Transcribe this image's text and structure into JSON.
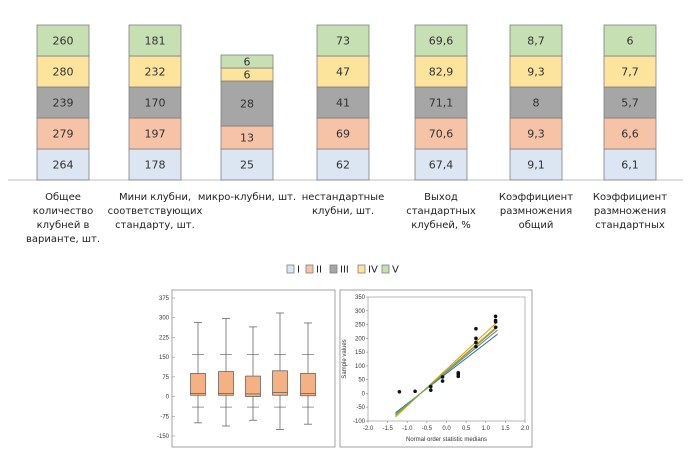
{
  "main_chart": {
    "type": "bar",
    "stacked": true,
    "categories": [
      [
        "Общее",
        "количество",
        "клубней в",
        "варианте, шт."
      ],
      [
        "Мини клубни,",
        "соответствующих",
        "стандарту, шт."
      ],
      [
        "микро-клубни, шт."
      ],
      [
        "нестандартные",
        "клубни, шт."
      ],
      [
        "Выход",
        "стандартных",
        "клубней, %"
      ],
      [
        "Коэффициент",
        "размножения",
        "общий"
      ],
      [
        "Коэффициент",
        "размножения",
        "стандартных"
      ]
    ],
    "series": [
      {
        "name": "I",
        "color": "#dce6f2",
        "values": [
          264,
          178,
          25,
          62,
          67.4,
          9.1,
          6.1
        ],
        "labels": [
          "264",
          "178",
          "25",
          "62",
          "67,4",
          "9,1",
          "6,1"
        ]
      },
      {
        "name": "II",
        "color": "#f7c3a7",
        "values": [
          279,
          197,
          13,
          69,
          70.6,
          9.3,
          6.6
        ],
        "labels": [
          "279",
          "197",
          "13",
          "69",
          "70,6",
          "9,3",
          "6,6"
        ]
      },
      {
        "name": "III",
        "color": "#a6a6a6",
        "values": [
          239,
          170,
          28,
          41,
          71.1,
          8,
          5.7
        ],
        "labels": [
          "239",
          "170",
          "28",
          "41",
          "71,1",
          "8",
          "5,7"
        ]
      },
      {
        "name": "IV",
        "color": "#fde49c",
        "values": [
          280,
          232,
          6,
          47,
          82.9,
          9.3,
          7.7
        ],
        "labels": [
          "280",
          "232",
          "6",
          "47",
          "82,9",
          "9,3",
          "7,7"
        ]
      },
      {
        "name": "V",
        "color": "#c6e0b4",
        "values": [
          260,
          181,
          6,
          73,
          69.6,
          8.7,
          6
        ],
        "labels": [
          "260",
          "181",
          "6",
          "73",
          "69,6",
          "8,7",
          "6"
        ]
      }
    ],
    "legend": "bottom-center"
  },
  "chart_data": [
    {
      "type": "box",
      "y_ticks": [
        "375",
        "300",
        "225",
        "150",
        "75",
        "0",
        "-75",
        "-150"
      ],
      "ylim": [
        -150,
        375
      ],
      "boxes": [
        {
          "min": -100,
          "q1": 5,
          "median": 12,
          "q3": 88,
          "max": 282
        },
        {
          "min": -112,
          "q1": 5,
          "median": 12,
          "q3": 95,
          "max": 297
        },
        {
          "min": -90,
          "q1": 0,
          "median": 10,
          "q3": 78,
          "max": 265
        },
        {
          "min": -125,
          "q1": 5,
          "median": 15,
          "q3": 98,
          "max": 318
        },
        {
          "min": -105,
          "q1": 3,
          "median": 12,
          "q3": 88,
          "max": 280
        }
      ],
      "fill": "#f4b183"
    },
    {
      "type": "scatter",
      "xlabel": "Normal order statistic medians",
      "ylabel": "Sample values",
      "x_ticks": [
        "-2.0",
        "-1.5",
        "-1.0",
        "-0.5",
        "0.0",
        "0.5",
        "1.0",
        "1.5",
        "2.0"
      ],
      "y_ticks": [
        "350",
        "300",
        "250",
        "200",
        "150",
        "100",
        "50",
        "0",
        "-50",
        "-100"
      ],
      "xlim": [
        -2.0,
        2.0
      ],
      "ylim": [
        -100,
        350
      ],
      "points": [
        [
          -1.2,
          6
        ],
        [
          -0.8,
          8
        ],
        [
          -0.4,
          12
        ],
        [
          -0.4,
          25
        ],
        [
          -0.1,
          45
        ],
        [
          -0.1,
          60
        ],
        [
          0.3,
          62
        ],
        [
          0.3,
          70
        ],
        [
          0.3,
          75
        ],
        [
          0.75,
          170
        ],
        [
          0.75,
          185
        ],
        [
          0.75,
          200
        ],
        [
          0.75,
          235
        ],
        [
          1.25,
          240
        ],
        [
          1.25,
          260
        ],
        [
          1.25,
          265
        ],
        [
          1.25,
          280
        ]
      ],
      "fit_lines": [
        {
          "color": "#2e75b6",
          "x": [
            -1.3,
            1.3
          ],
          "y": [
            -70,
            215
          ]
        },
        {
          "color": "#ed7d31",
          "x": [
            -1.3,
            1.3
          ],
          "y": [
            -80,
            245
          ]
        },
        {
          "color": "#7f7f7f",
          "x": [
            -1.3,
            1.3
          ],
          "y": [
            -75,
            230
          ]
        },
        {
          "color": "#c9a800",
          "x": [
            -1.3,
            1.3
          ],
          "y": [
            -85,
            260
          ]
        },
        {
          "color": "#70ad47",
          "x": [
            -1.3,
            1.3
          ],
          "y": [
            -78,
            240
          ]
        }
      ]
    }
  ]
}
